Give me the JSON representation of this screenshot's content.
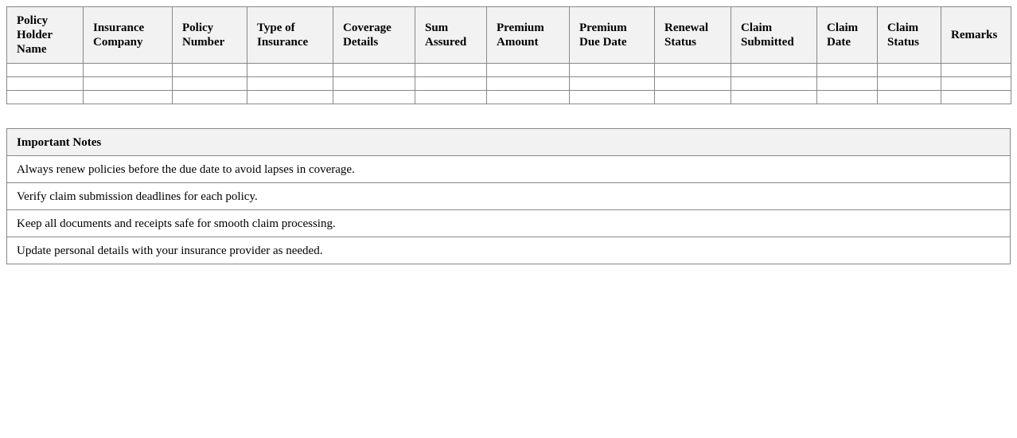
{
  "policy_table": {
    "headers": [
      "Policy Holder Name",
      "Insurance Company",
      "Policy Number",
      "Type of Insurance",
      "Coverage Details",
      "Sum Assured",
      "Premium Amount",
      "Premium Due Date",
      "Renewal Status",
      "Claim Submitted",
      "Claim Date",
      "Claim Status",
      "Remarks"
    ],
    "empty_rows": 3
  },
  "notes": {
    "title": "Important Notes",
    "items": [
      "Always renew policies before the due date to avoid lapses in coverage.",
      "Verify claim submission deadlines for each policy.",
      "Keep all documents and receipts safe for smooth claim processing.",
      "Update personal details with your insurance provider as needed."
    ]
  }
}
